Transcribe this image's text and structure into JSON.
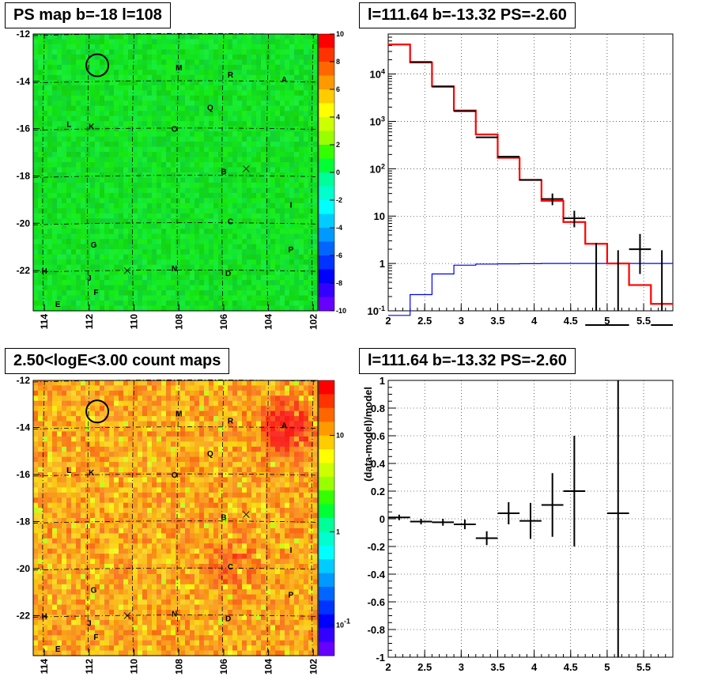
{
  "panels": {
    "top_left_title": "PS map b=-18 l=108",
    "top_right_title": "l=111.64 b=-13.32 PS=-2.60",
    "bottom_left_title": "2.50<logE<3.00 count maps",
    "bottom_right_title": "l=111.64 b=-13.32 PS=-2.60"
  },
  "chart_data": [
    {
      "type": "heatmap",
      "title": "PS map b=-18 l=108",
      "x_ticks": [
        "114",
        "112",
        "110",
        "108",
        "106",
        "104",
        "102"
      ],
      "y_ticks": [
        "-12",
        "-14",
        "-16",
        "-18",
        "-20",
        "-22"
      ],
      "xlim": [
        114.5,
        101.8
      ],
      "ylim": [
        -23.7,
        -12
      ],
      "colorbar": {
        "scale": "linear",
        "range": [
          -10,
          10
        ],
        "ticks": [
          "10",
          "8",
          "6",
          "4",
          "2",
          "0",
          "-2",
          "-4",
          "-6",
          "-8",
          "-10"
        ]
      },
      "sources": [
        {
          "label": "M",
          "l": 108.0,
          "b": -13.4
        },
        {
          "label": "R",
          "l": 105.7,
          "b": -13.7
        },
        {
          "label": "A",
          "l": 103.3,
          "b": -13.9
        },
        {
          "label": "Q",
          "l": 106.6,
          "b": -15.1
        },
        {
          "label": "L",
          "l": 112.9,
          "b": -15.8
        },
        {
          "label": "K",
          "l": 111.9,
          "b": -15.9
        },
        {
          "label": "O",
          "l": 108.2,
          "b": -16.0
        },
        {
          "label": "B",
          "l": 106.0,
          "b": -17.8
        },
        {
          "label": "I",
          "l": 103.0,
          "b": -19.2
        },
        {
          "label": "C",
          "l": 105.7,
          "b": -19.9
        },
        {
          "label": "G",
          "l": 111.8,
          "b": -20.9
        },
        {
          "label": "P",
          "l": 103.0,
          "b": -21.1
        },
        {
          "label": "H",
          "l": 114.0,
          "b": -22.0
        },
        {
          "label": "N",
          "l": 108.2,
          "b": -21.9
        },
        {
          "label": "D",
          "l": 105.8,
          "b": -22.1
        },
        {
          "label": "J",
          "l": 112.0,
          "b": -22.3
        },
        {
          "label": "F",
          "l": 111.7,
          "b": -22.9
        },
        {
          "label": "E",
          "l": 113.4,
          "b": -23.4
        }
      ],
      "crosses": [
        {
          "l": 110.3,
          "b": -22.0
        },
        {
          "l": 105.0,
          "b": -17.7
        }
      ],
      "circle": {
        "l": 111.64,
        "b": -13.32
      }
    },
    {
      "type": "line",
      "title": "l=111.64 b=-13.32 PS=-2.60",
      "x_ticks": [
        "2",
        "2.5",
        "3",
        "3.5",
        "4",
        "4.5",
        "5",
        "5.5"
      ],
      "y_ticks": [
        "10^-1",
        "1",
        "10",
        "10^2",
        "10^3",
        "10^4"
      ],
      "xlim": [
        2,
        5.9
      ],
      "ylim": [
        0.1,
        70000
      ],
      "yscale": "log",
      "bin_edges": [
        2.0,
        2.3,
        2.6,
        2.9,
        3.2,
        3.5,
        3.8,
        4.1,
        4.4,
        4.7,
        5.0,
        5.3,
        5.6,
        5.9
      ],
      "series": [
        {
          "color": "#ff0000",
          "values": [
            42000,
            17500,
            5500,
            1700,
            530,
            170,
            58,
            21,
            7.5,
            2.6,
            1.0,
            0.35,
            0.14
          ]
        },
        {
          "color": "#0000ff",
          "values": [
            0.08,
            0.22,
            0.6,
            0.92,
            0.97,
            0.98,
            0.99,
            1.0,
            1.0,
            1.0,
            1.0,
            1.0,
            1.0
          ]
        },
        {
          "color": "#000000",
          "style": "points",
          "points": [
            {
              "x": 2.45,
              "y": 18000
            },
            {
              "x": 2.75,
              "y": 5400
            },
            {
              "x": 3.05,
              "y": 1650
            },
            {
              "x": 3.35,
              "y": 460
            },
            {
              "x": 3.65,
              "y": 180
            },
            {
              "x": 3.95,
              "y": 58
            },
            {
              "x": 4.25,
              "y": 23,
              "ylo": 17,
              "yhi": 30
            },
            {
              "x": 4.55,
              "y": 9,
              "ylo": 5.8,
              "yhi": 13
            },
            {
              "x": 4.85,
              "y": 0.02,
              "yhi": 2.7
            },
            {
              "x": 5.15,
              "y": 0.02,
              "yhi": 1.9
            },
            {
              "x": 5.45,
              "y": 2,
              "ylo": 0.6,
              "yhi": 4.2
            },
            {
              "x": 5.75,
              "y": 0.02,
              "yhi": 1.9
            }
          ]
        }
      ]
    },
    {
      "type": "heatmap",
      "title": "2.50<logE<3.00 count maps",
      "x_ticks": [
        "114",
        "112",
        "110",
        "108",
        "106",
        "104",
        "102"
      ],
      "y_ticks": [
        "-12",
        "-14",
        "-16",
        "-18",
        "-20",
        "-22"
      ],
      "xlim": [
        114.5,
        101.8
      ],
      "ylim": [
        -23.7,
        -12
      ],
      "colorbar": {
        "scale": "log",
        "ticks": [
          "10",
          "1",
          "10^-1"
        ]
      },
      "hotspots": [
        {
          "l": 103.2,
          "b": -14.0,
          "strength": 1.0
        },
        {
          "l": 105.6,
          "b": -19.9,
          "strength": 0.35
        }
      ]
    },
    {
      "type": "scatter",
      "title": "l=111.64 b=-13.32 PS=-2.60",
      "ylabel": "(data-model)/model",
      "x_ticks": [
        "2",
        "2.5",
        "3",
        "3.5",
        "4",
        "4.5",
        "5",
        "5.5"
      ],
      "y_ticks": [
        "1",
        "0.8",
        "0.6",
        "0.4",
        "0.2",
        "0",
        "-0.2",
        "-0.4",
        "-0.6",
        "-0.8",
        "-1"
      ],
      "xlim": [
        2,
        5.9
      ],
      "ylim": [
        -1,
        1
      ],
      "points": [
        {
          "x": 2.15,
          "y": 0.01,
          "xerr": 0.15,
          "yerr": 0.02
        },
        {
          "x": 2.45,
          "y": -0.02,
          "xerr": 0.15,
          "yerr": 0.02
        },
        {
          "x": 2.75,
          "y": -0.025,
          "xerr": 0.15,
          "yerr": 0.025
        },
        {
          "x": 3.05,
          "y": -0.04,
          "xerr": 0.15,
          "yerr": 0.035
        },
        {
          "x": 3.35,
          "y": -0.14,
          "xerr": 0.15,
          "yerr": 0.05
        },
        {
          "x": 3.65,
          "y": 0.04,
          "xerr": 0.15,
          "yerr": 0.08
        },
        {
          "x": 3.95,
          "y": -0.015,
          "xerr": 0.15,
          "yerr": 0.13
        },
        {
          "x": 4.25,
          "y": 0.1,
          "xerr": 0.15,
          "yerr": 0.23
        },
        {
          "x": 4.55,
          "y": 0.2,
          "xerr": 0.15,
          "yerr": 0.4
        },
        {
          "x": 5.15,
          "y": 0.04,
          "xerr": 0.15,
          "yerr": 1.3
        }
      ]
    }
  ]
}
